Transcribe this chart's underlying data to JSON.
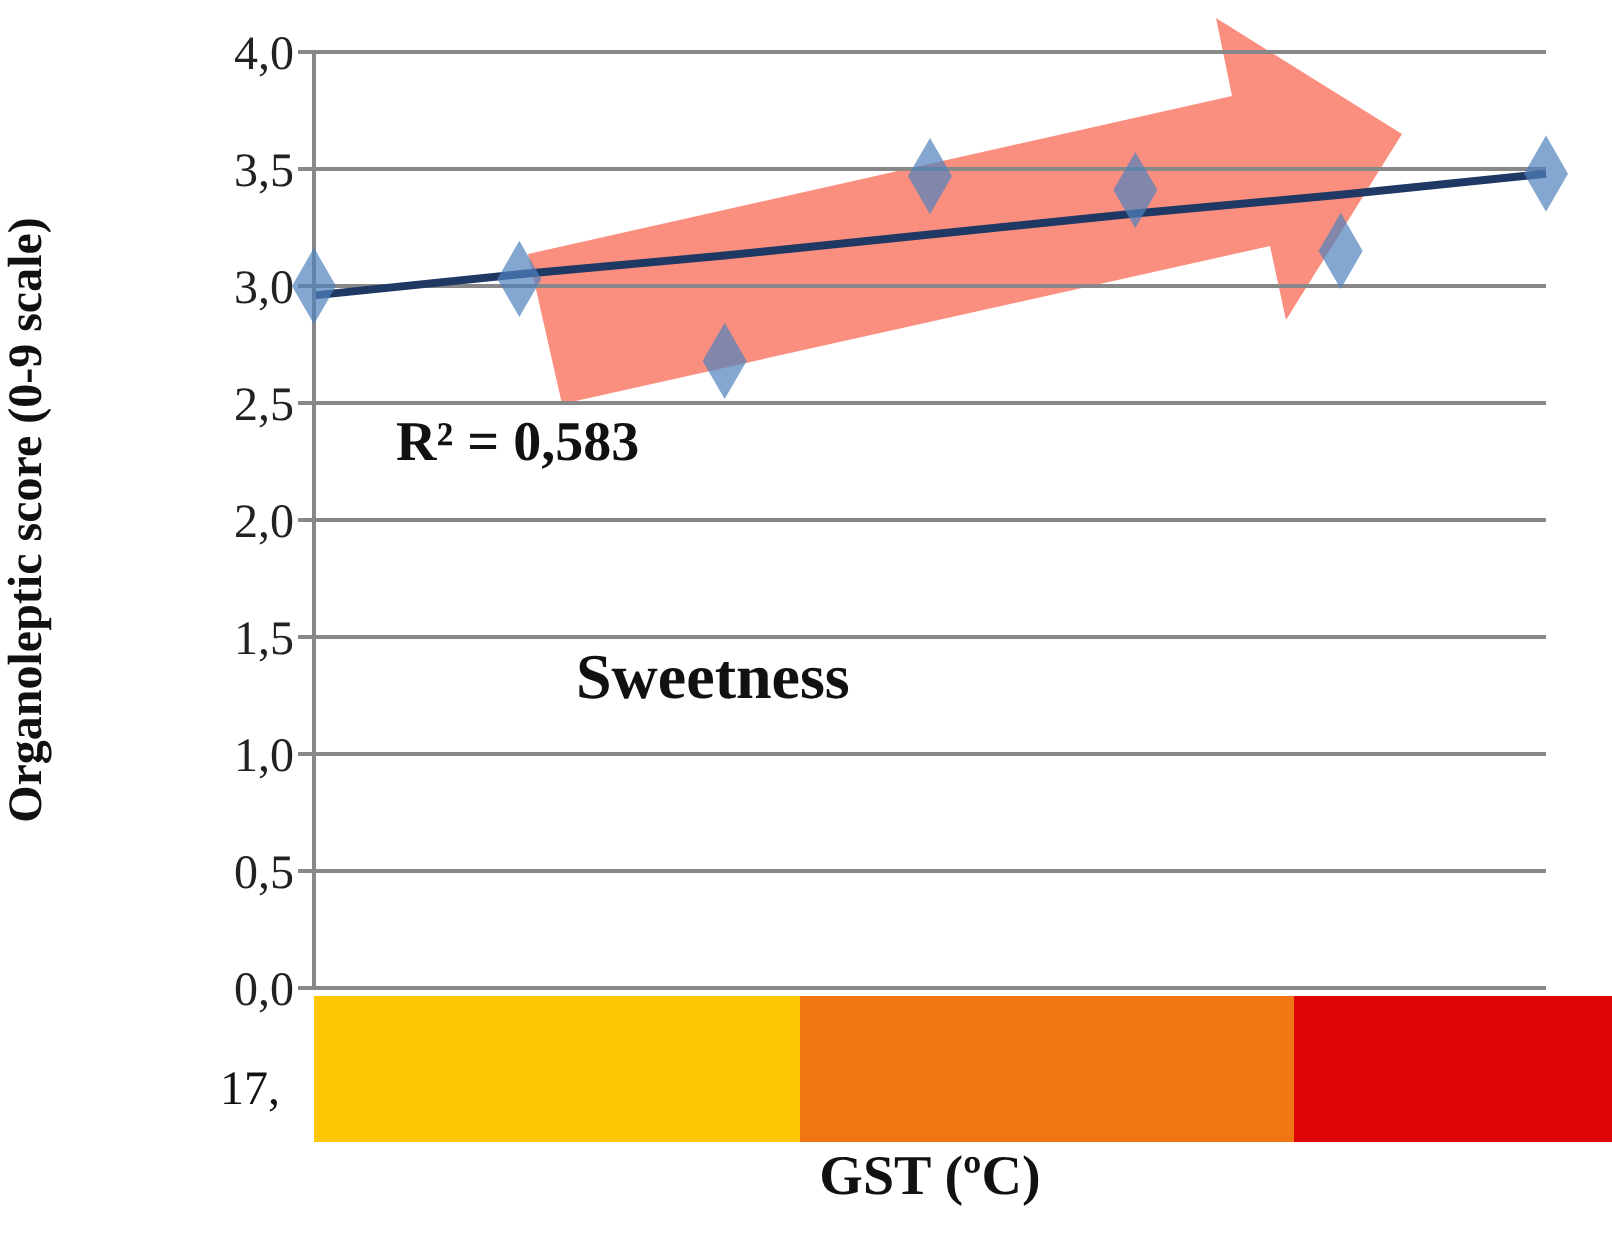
{
  "chart_data": {
    "type": "scatter",
    "xlabel": "GST (ºC)",
    "ylabel": "Organoleptic score (0-9 scale)",
    "annotations": [
      "R² = 0,583",
      "Sweetness",
      "17,"
    ],
    "categories": [
      null,
      null,
      null,
      null,
      null,
      null,
      null
    ],
    "ylim": [
      0,
      4
    ],
    "yticks": [
      {
        "value": 0,
        "label": "0,0"
      },
      {
        "value": 0.5,
        "label": "0,5"
      },
      {
        "value": 1,
        "label": "1,0"
      },
      {
        "value": 1.5,
        "label": "1,5"
      },
      {
        "value": 2,
        "label": "2,0"
      },
      {
        "value": 2.5,
        "label": "2,5"
      },
      {
        "value": 3,
        "label": "3,0"
      },
      {
        "value": 3.5,
        "label": "3,5"
      },
      {
        "value": 4,
        "label": "4,0"
      }
    ],
    "grid": "y",
    "marker": "diamond",
    "legend": false,
    "series": [
      {
        "color": "#4f81bd",
        "values": [
          3.0,
          3.03,
          2.68,
          3.47,
          3.41,
          3.15,
          3.48
        ]
      },
      {
        "type": "line",
        "marker": "none",
        "color": "#1f3864",
        "values": [
          2.96,
          3.05,
          3.13,
          3.22,
          3.31,
          3.39,
          3.48
        ]
      }
    ]
  }
}
